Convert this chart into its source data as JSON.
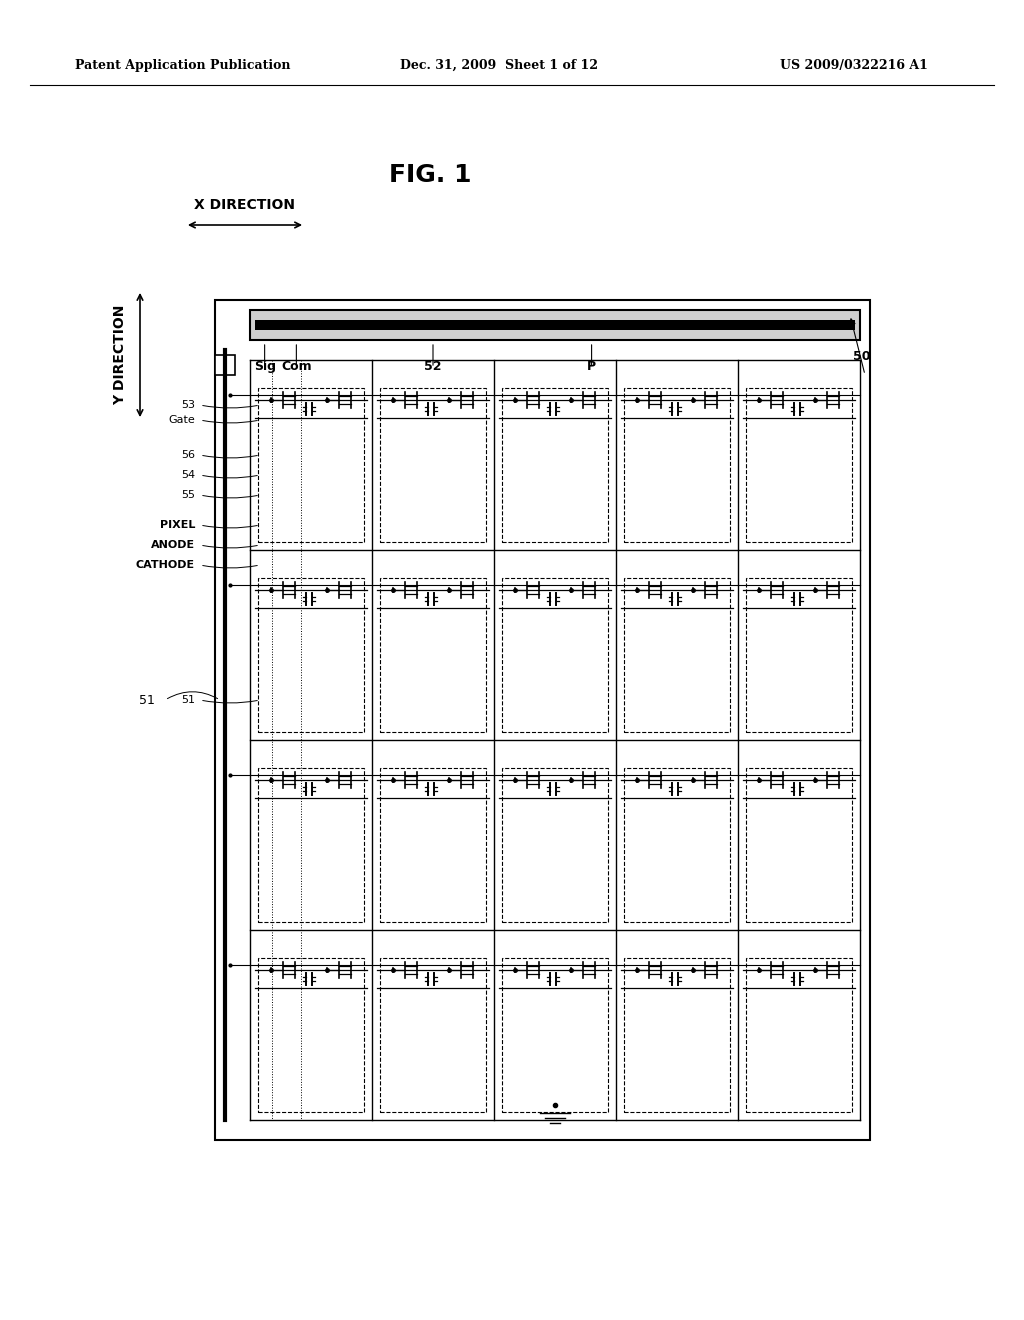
{
  "background_color": "#ffffff",
  "header_left": "Patent Application Publication",
  "header_center": "Dec. 31, 2009  Sheet 1 of 12",
  "header_right": "US 2009/0322216 A1",
  "fig_title": "FIG. 1",
  "x_direction_label": "X DIRECTION",
  "y_direction_label": "Y DIRECTION",
  "labels_top": [
    "Sig",
    "Com",
    "52",
    "P",
    "50"
  ],
  "labels_left": [
    "53",
    "Gate",
    "56",
    "54",
    "55",
    "PIXEL",
    "ANODE",
    "CATHODE",
    "51"
  ],
  "num_cols": 5,
  "num_rows": 4
}
